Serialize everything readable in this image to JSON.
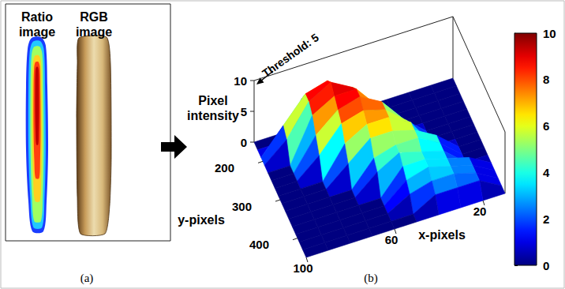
{
  "panel_a": {
    "label": "(a)",
    "images": [
      "Ratio image",
      "RGB image"
    ]
  },
  "chart_data": {
    "type": "surface",
    "label": "(b)",
    "x_label": "x-pixels",
    "y_label": "y-pixels",
    "z_label": "Pixel intensity",
    "x": [
      10,
      20,
      30,
      40,
      50,
      60,
      70,
      80,
      90,
      100
    ],
    "y": [
      150,
      170,
      190,
      210,
      230,
      250,
      270,
      290,
      310,
      330,
      350,
      370,
      390,
      410,
      430,
      450
    ],
    "z": [
      [
        0,
        0,
        0,
        0,
        0,
        0,
        0,
        0,
        0,
        0
      ],
      [
        0,
        0,
        0,
        0,
        0,
        3,
        7,
        6,
        0,
        0
      ],
      [
        0,
        0,
        0,
        0,
        0,
        6,
        9,
        8,
        4,
        0
      ],
      [
        0,
        0,
        0,
        0,
        4,
        8,
        10,
        8,
        3,
        0
      ],
      [
        0,
        0,
        0,
        0,
        5,
        9,
        9,
        7,
        0,
        0
      ],
      [
        0,
        0,
        0,
        3,
        7,
        9,
        8,
        5,
        0,
        0
      ],
      [
        0,
        0,
        0,
        4,
        7,
        8,
        7,
        3,
        0,
        0
      ],
      [
        0,
        0,
        0,
        5,
        7,
        7,
        5,
        0,
        0,
        0
      ],
      [
        0,
        0,
        3,
        5,
        6,
        6,
        3,
        0,
        0,
        0
      ],
      [
        0,
        0,
        3,
        5,
        5,
        4,
        0,
        0,
        0,
        0
      ],
      [
        0,
        0,
        3,
        4,
        5,
        3,
        0,
        0,
        0,
        0
      ],
      [
        0,
        2,
        3,
        4,
        4,
        0,
        0,
        0,
        0,
        0
      ],
      [
        0,
        2,
        3,
        4,
        3,
        0,
        0,
        0,
        0,
        0
      ],
      [
        0,
        2,
        3,
        3,
        2,
        0,
        0,
        0,
        0,
        0
      ],
      [
        0,
        2,
        2,
        2,
        0,
        0,
        0,
        0,
        0,
        0
      ],
      [
        0,
        0,
        0,
        0,
        0,
        0,
        0,
        0,
        0,
        0
      ]
    ],
    "xlim": [
      10,
      100
    ],
    "xticks": [
      20,
      60,
      100
    ],
    "ylim": [
      150,
      450
    ],
    "yticks": [
      200,
      300,
      400
    ],
    "zlim": [
      0,
      10
    ],
    "zticks": [
      0,
      5,
      10
    ],
    "colorbar": {
      "range": [
        0,
        10
      ],
      "ticks": [
        0,
        2,
        4,
        6,
        8,
        10
      ]
    },
    "annotations": [
      {
        "text": "Threshold: 5"
      }
    ]
  }
}
